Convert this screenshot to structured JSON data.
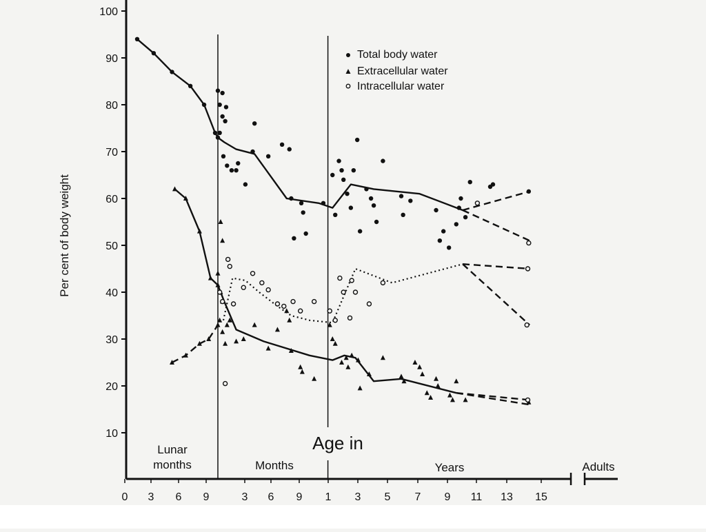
{
  "chart_data": {
    "type": "line",
    "ylabel": "Per cent of body weight",
    "xlabel": "Age in",
    "ylim": [
      10,
      100
    ],
    "yticks": [
      "10",
      "20",
      "30",
      "40",
      "50",
      "60",
      "70",
      "80",
      "90",
      "100"
    ],
    "regions": [
      {
        "key": "lunar",
        "label_lines": [
          "Lunar",
          "months"
        ],
        "ticks": [
          "0",
          "3",
          "6",
          "9"
        ]
      },
      {
        "key": "months",
        "label_lines": [
          "Months"
        ],
        "ticks": [
          "3",
          "6",
          "9"
        ]
      },
      {
        "key": "years",
        "label_lines": [
          "Years"
        ],
        "ticks": [
          "1",
          "3",
          "5",
          "7",
          "9",
          "11",
          "13",
          "15"
        ]
      },
      {
        "key": "adults",
        "label_lines": [
          "Adults"
        ],
        "ticks": []
      }
    ],
    "x_units_note": "x values are in a combined age axis: lunar months 0–10 (birth at 10), then months 10–22 (birth + months), then years 22–38 (year 1 at 22), adults at 44",
    "legend": [
      {
        "marker": "filled-circle",
        "label": "Total body water"
      },
      {
        "marker": "triangle",
        "label": "Extracellular water"
      },
      {
        "marker": "open-circle",
        "label": "Intracellular water"
      }
    ],
    "series": [
      {
        "name": "Total body water",
        "style": "solid",
        "x": [
          1.2,
          3,
          5,
          7,
          8.5,
          9.7,
          10,
          10.7,
          12,
          14,
          17.5,
          21,
          22.5,
          24.5,
          27,
          32,
          36.7
        ],
        "y": [
          94,
          91,
          87,
          84,
          80,
          74,
          73,
          72,
          70.5,
          69.5,
          60,
          59,
          58,
          63,
          62,
          61,
          57.5
        ]
      },
      {
        "name": "Total body water (adult, upper)",
        "style": "dashed",
        "x": [
          36.7,
          44
        ],
        "y": [
          57.5,
          61.5
        ]
      },
      {
        "name": "Total body water (adult, lower)",
        "style": "dashed",
        "x": [
          36.7,
          44
        ],
        "y": [
          57.5,
          51
        ]
      },
      {
        "name": "Extracellular water",
        "style": "solid",
        "x": [
          5.3,
          6.5,
          8,
          9.2,
          10,
          10.7,
          12,
          15,
          20,
          22.5,
          23.8,
          25,
          27,
          30,
          36
        ],
        "y": [
          62,
          60,
          53,
          43,
          41.5,
          38,
          32,
          29.5,
          26.5,
          25.5,
          26.5,
          26,
          21,
          21.5,
          18.5
        ]
      },
      {
        "name": "Extracellular water (adult, upper)",
        "style": "dashed",
        "x": [
          36,
          44
        ],
        "y": [
          18.5,
          17
        ]
      },
      {
        "name": "Extracellular water (adult, lower)",
        "style": "dashed",
        "x": [
          36,
          44
        ],
        "y": [
          18.5,
          16
        ]
      },
      {
        "name": "Intracellular water",
        "style": "dashed",
        "x": [
          5,
          6.5,
          8,
          9,
          10
        ],
        "y": [
          25,
          26.5,
          29,
          30,
          33
        ]
      },
      {
        "name": "Intracellular water",
        "style": "dotted",
        "x": [
          10.6,
          11.6,
          13,
          14.5,
          16.5,
          18,
          20,
          22.5,
          25,
          29,
          36.7
        ],
        "y": [
          34,
          43,
          42.5,
          40,
          37,
          35,
          34,
          33.5,
          45,
          42,
          46
        ]
      },
      {
        "name": "Intracellular water (adult, upper)",
        "style": "dashed",
        "x": [
          36.7,
          44
        ],
        "y": [
          46,
          45
        ]
      },
      {
        "name": "Intracellular water (adult, lower)",
        "style": "dashed",
        "x": [
          36.7,
          44
        ],
        "y": [
          46,
          33
        ]
      }
    ],
    "scatter": {
      "total_body_water": [
        [
          10,
          83
        ],
        [
          10.5,
          82.5
        ],
        [
          10.2,
          80
        ],
        [
          10.9,
          79.5
        ],
        [
          10.5,
          77.5
        ],
        [
          10.8,
          76.5
        ],
        [
          10.2,
          74
        ],
        [
          10.6,
          69
        ],
        [
          11,
          67
        ],
        [
          11.5,
          66
        ],
        [
          12.2,
          67.5
        ],
        [
          12,
          66
        ],
        [
          13,
          63
        ],
        [
          13.8,
          70
        ],
        [
          14,
          76
        ],
        [
          15.5,
          69
        ],
        [
          17,
          71.5
        ],
        [
          17.8,
          70.5
        ],
        [
          18,
          60
        ],
        [
          18.3,
          51.5
        ],
        [
          19.1,
          59
        ],
        [
          19.3,
          57
        ],
        [
          19.6,
          52.5
        ],
        [
          21.5,
          59
        ],
        [
          22.5,
          65
        ],
        [
          22.8,
          56.5
        ],
        [
          23.2,
          68
        ],
        [
          23.5,
          66
        ],
        [
          23.7,
          64
        ],
        [
          24.1,
          61
        ],
        [
          24.5,
          58
        ],
        [
          24.8,
          66
        ],
        [
          25.2,
          72.5
        ],
        [
          25.5,
          53
        ],
        [
          26.2,
          62
        ],
        [
          26.7,
          60
        ],
        [
          27,
          58.5
        ],
        [
          27.3,
          55
        ],
        [
          28,
          68
        ],
        [
          30,
          60.5
        ],
        [
          30.2,
          56.5
        ],
        [
          31,
          59.5
        ],
        [
          33.8,
          57.5
        ],
        [
          34.2,
          51
        ],
        [
          34.6,
          53
        ],
        [
          35.2,
          49.5
        ],
        [
          36,
          54.5
        ],
        [
          36.3,
          58
        ],
        [
          36.5,
          60
        ],
        [
          37,
          56
        ],
        [
          37.5,
          63.5
        ],
        [
          39.7,
          62.5
        ],
        [
          40,
          63
        ],
        [
          43.9,
          61.5
        ]
      ],
      "extracellular_water": [
        [
          10,
          44
        ],
        [
          10.3,
          40
        ],
        [
          10.5,
          38
        ],
        [
          10.2,
          34
        ],
        [
          10.5,
          31.5
        ],
        [
          10.8,
          29
        ],
        [
          10.3,
          55
        ],
        [
          10.5,
          51
        ],
        [
          11,
          33
        ],
        [
          11.3,
          34
        ],
        [
          12,
          29.5
        ],
        [
          12.8,
          30
        ],
        [
          14,
          33
        ],
        [
          15.5,
          28
        ],
        [
          16.5,
          32
        ],
        [
          17.5,
          36
        ],
        [
          17.8,
          34
        ],
        [
          18,
          27.5
        ],
        [
          19,
          24
        ],
        [
          19.2,
          23
        ],
        [
          20.5,
          21.5
        ],
        [
          22.2,
          33
        ],
        [
          22.5,
          30
        ],
        [
          22.8,
          29
        ],
        [
          23.5,
          25
        ],
        [
          24,
          26
        ],
        [
          24.2,
          24
        ],
        [
          24.6,
          26.5
        ],
        [
          25.3,
          25.5
        ],
        [
          25.5,
          19.5
        ],
        [
          26.5,
          22.5
        ],
        [
          28,
          26
        ],
        [
          30,
          22
        ],
        [
          30.3,
          21
        ],
        [
          31.5,
          25
        ],
        [
          32,
          24
        ],
        [
          32.3,
          22.5
        ],
        [
          32.8,
          18.5
        ],
        [
          33.2,
          17.5
        ],
        [
          33.8,
          21.5
        ],
        [
          34,
          20
        ],
        [
          35.3,
          18
        ],
        [
          35.6,
          17
        ],
        [
          36,
          21
        ],
        [
          37,
          17
        ],
        [
          43.9,
          16.5
        ]
      ],
      "intracellular_water": [
        [
          10.2,
          40
        ],
        [
          10.5,
          38
        ],
        [
          10.8,
          20.5
        ],
        [
          11.1,
          47
        ],
        [
          11.3,
          45.5
        ],
        [
          11.7,
          37.5
        ],
        [
          12.8,
          41
        ],
        [
          13.8,
          44
        ],
        [
          14.8,
          42
        ],
        [
          15.5,
          40.5
        ],
        [
          16.5,
          37.5
        ],
        [
          17.2,
          37
        ],
        [
          18.2,
          38
        ],
        [
          19,
          36
        ],
        [
          20.5,
          38
        ],
        [
          22.2,
          36
        ],
        [
          22.8,
          34
        ],
        [
          23.3,
          43
        ],
        [
          23.7,
          40
        ],
        [
          24.4,
          34.5
        ],
        [
          24.6,
          42.5
        ],
        [
          25,
          40
        ],
        [
          26.5,
          37.5
        ],
        [
          28,
          42
        ],
        [
          38.3,
          59
        ],
        [
          43.8,
          45
        ],
        [
          43.7,
          33
        ],
        [
          43.8,
          17
        ],
        [
          43.9,
          50.5
        ]
      ]
    }
  }
}
